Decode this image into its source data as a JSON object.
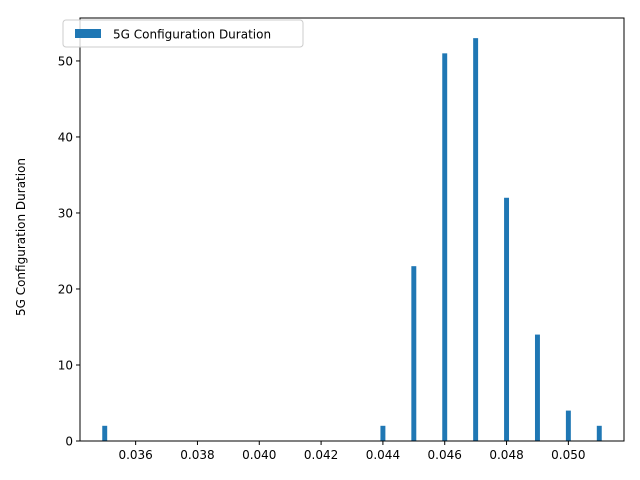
{
  "chart_data": {
    "type": "bar",
    "title": "",
    "xlabel": "",
    "ylabel": "5G Configuration Duration",
    "series": [
      {
        "name": "5G Configuration Duration",
        "color": "#1f77b4",
        "x": [
          0.035,
          0.044,
          0.045,
          0.046,
          0.047,
          0.048,
          0.049,
          0.05,
          0.051
        ],
        "values": [
          2,
          2,
          23,
          51,
          53,
          32,
          14,
          4,
          2
        ]
      }
    ],
    "bar_width": 0.00016,
    "xlim": [
      0.0342,
      0.0518
    ],
    "ylim": [
      0,
      55.65
    ],
    "xticks": [
      0.036,
      0.038,
      0.04,
      0.042,
      0.044,
      0.046,
      0.048,
      0.05
    ],
    "xtick_labels": [
      "0.036",
      "0.038",
      "0.040",
      "0.042",
      "0.044",
      "0.046",
      "0.048",
      "0.050"
    ],
    "yticks": [
      0,
      10,
      20,
      30,
      40,
      50
    ],
    "ytick_labels": [
      "0",
      "10",
      "20",
      "30",
      "40",
      "50"
    ],
    "legend_position": "top-left",
    "grid": false
  }
}
